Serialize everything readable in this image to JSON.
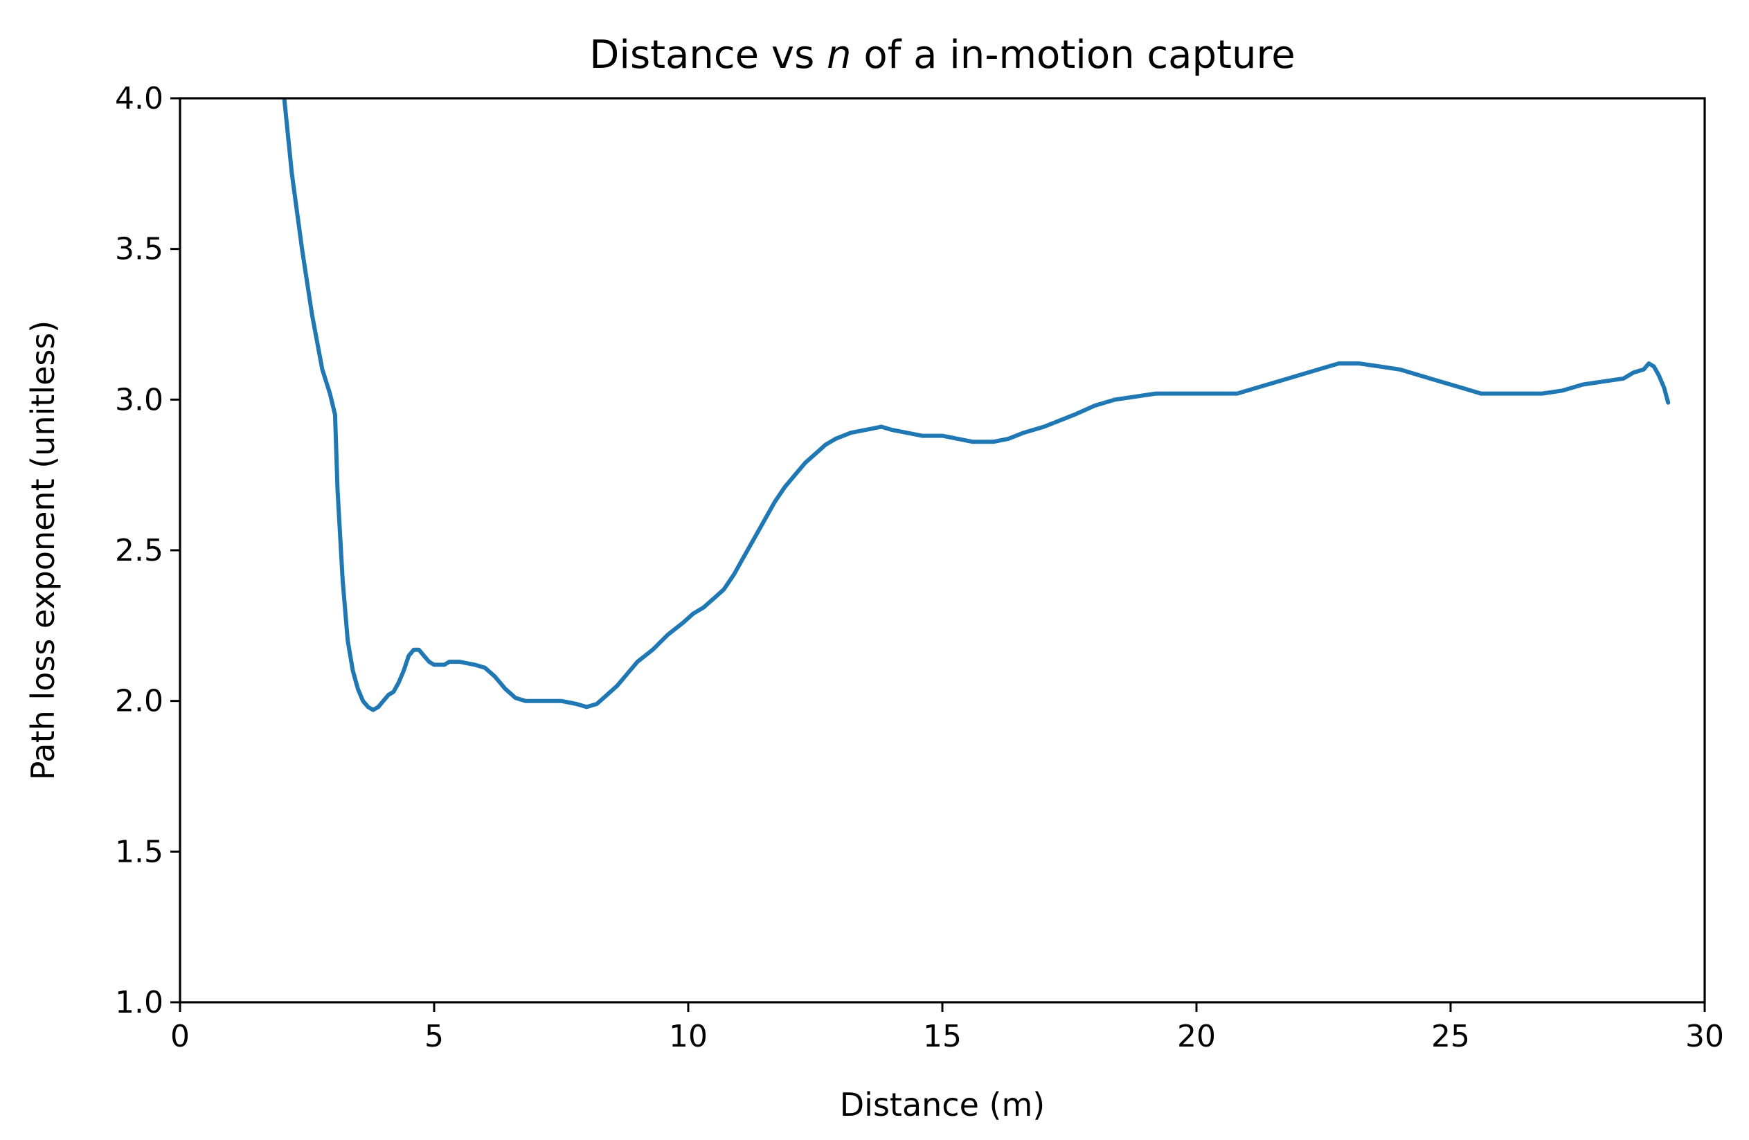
{
  "chart_data": {
    "type": "line",
    "title_parts": [
      "Distance vs ",
      "n",
      " of a in-motion capture"
    ],
    "xlabel": "Distance (m)",
    "ylabel": "Path loss exponent (unitless)",
    "xlim": [
      0,
      30
    ],
    "ylim": [
      1.0,
      4.0
    ],
    "xticks": [
      0,
      5,
      10,
      15,
      20,
      25,
      30
    ],
    "xtick_labels": [
      "0",
      "5",
      "10",
      "15",
      "20",
      "25",
      "30"
    ],
    "yticks": [
      1.0,
      1.5,
      2.0,
      2.5,
      3.0,
      3.5,
      4.0
    ],
    "ytick_labels": [
      "1.0",
      "1.5",
      "2.0",
      "2.5",
      "3.0",
      "3.5",
      "4.0"
    ],
    "grid": false,
    "color": "#1f77b4",
    "series": [
      {
        "x": [
          2.05,
          2.2,
          2.4,
          2.6,
          2.8,
          2.95,
          3.05,
          3.1,
          3.2,
          3.3,
          3.4,
          3.5,
          3.6,
          3.7,
          3.8,
          3.9,
          4.0,
          4.1,
          4.2,
          4.3,
          4.4,
          4.5,
          4.6,
          4.7,
          4.8,
          4.9,
          5.0,
          5.1,
          5.2,
          5.3,
          5.5,
          5.8,
          6.0,
          6.2,
          6.4,
          6.6,
          6.8,
          7.0,
          7.2,
          7.5,
          7.8,
          8.0,
          8.2,
          8.4,
          8.6,
          8.8,
          9.0,
          9.3,
          9.6,
          9.9,
          10.1,
          10.3,
          10.5,
          10.7,
          10.9,
          11.1,
          11.3,
          11.5,
          11.7,
          11.9,
          12.1,
          12.3,
          12.5,
          12.7,
          12.9,
          13.2,
          13.5,
          13.8,
          14.0,
          14.3,
          14.6,
          15.0,
          15.3,
          15.6,
          16.0,
          16.3,
          16.6,
          17.0,
          17.3,
          17.6,
          18.0,
          18.4,
          18.8,
          19.2,
          19.6,
          20.0,
          20.4,
          20.8,
          21.2,
          21.6,
          22.0,
          22.4,
          22.8,
          23.2,
          23.6,
          24.0,
          24.4,
          24.8,
          25.2,
          25.6,
          26.0,
          26.4,
          26.8,
          27.2,
          27.6,
          28.0,
          28.4,
          28.6,
          28.8,
          28.9,
          29.0,
          29.1,
          29.2,
          29.28
        ],
        "y": [
          4.0,
          3.75,
          3.5,
          3.28,
          3.1,
          3.02,
          2.95,
          2.7,
          2.4,
          2.2,
          2.1,
          2.04,
          2.0,
          1.98,
          1.97,
          1.98,
          2.0,
          2.02,
          2.03,
          2.06,
          2.1,
          2.15,
          2.17,
          2.17,
          2.15,
          2.13,
          2.12,
          2.12,
          2.12,
          2.13,
          2.13,
          2.12,
          2.11,
          2.08,
          2.04,
          2.01,
          2.0,
          2.0,
          2.0,
          2.0,
          1.99,
          1.98,
          1.99,
          2.02,
          2.05,
          2.09,
          2.13,
          2.17,
          2.22,
          2.26,
          2.29,
          2.31,
          2.34,
          2.37,
          2.42,
          2.48,
          2.54,
          2.6,
          2.66,
          2.71,
          2.75,
          2.79,
          2.82,
          2.85,
          2.87,
          2.89,
          2.9,
          2.91,
          2.9,
          2.89,
          2.88,
          2.88,
          2.87,
          2.86,
          2.86,
          2.87,
          2.89,
          2.91,
          2.93,
          2.95,
          2.98,
          3.0,
          3.01,
          3.02,
          3.02,
          3.02,
          3.02,
          3.02,
          3.04,
          3.06,
          3.08,
          3.1,
          3.12,
          3.12,
          3.11,
          3.1,
          3.08,
          3.06,
          3.04,
          3.02,
          3.02,
          3.02,
          3.02,
          3.03,
          3.05,
          3.06,
          3.07,
          3.09,
          3.1,
          3.12,
          3.11,
          3.08,
          3.04,
          2.99
        ]
      }
    ]
  }
}
